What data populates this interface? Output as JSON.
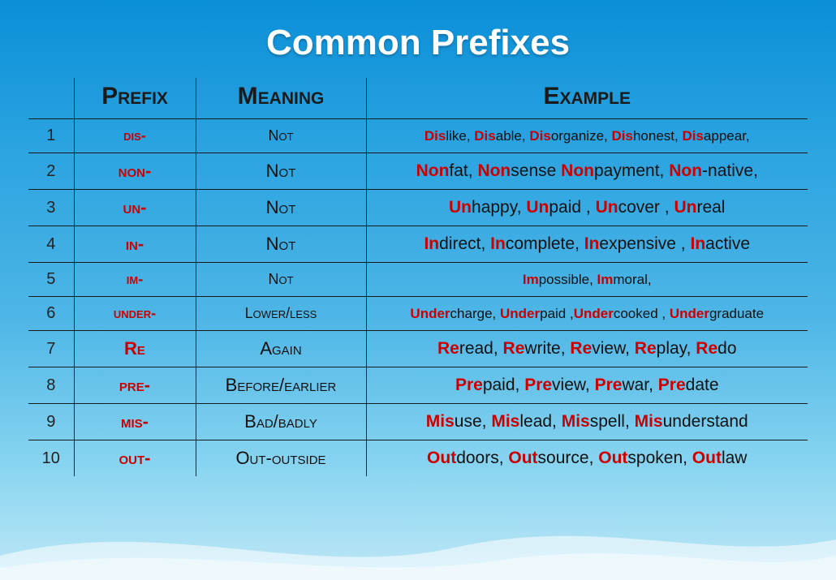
{
  "title": "Common Prefixes",
  "headers": {
    "num": "",
    "prefix": "Prefix",
    "meaning": "Meaning",
    "example": "Example"
  },
  "rows": [
    {
      "n": "1",
      "prefix": "dis-",
      "meaning": "Not",
      "sm": true,
      "examples": [
        [
          "Dis",
          "like"
        ],
        [
          "Dis",
          "able"
        ],
        [
          "Dis",
          "organize"
        ],
        [
          "Dis",
          "honest"
        ],
        [
          "Dis",
          "appear"
        ]
      ],
      "trail": ","
    },
    {
      "n": "2",
      "prefix": "non-",
      "meaning": "Not",
      "examples": [
        [
          "Non",
          "fat"
        ],
        [
          "Non",
          "sense"
        ],
        [
          "Non",
          "payment"
        ],
        [
          "Non",
          "-native"
        ]
      ],
      "sep_override": [
        ", ",
        " ",
        ", "
      ],
      "trail": ","
    },
    {
      "n": "3",
      "prefix": "un-",
      "meaning": "Not",
      "examples": [
        [
          "Un",
          "happy"
        ],
        [
          "Un",
          "paid"
        ],
        [
          "Un",
          "cover"
        ],
        [
          "Un",
          "real"
        ]
      ],
      "sep_override": [
        ", ",
        " , ",
        " , "
      ]
    },
    {
      "n": "4",
      "prefix": "in-",
      "meaning": "Not",
      "examples": [
        [
          "In",
          "direct"
        ],
        [
          "In",
          "complete"
        ],
        [
          "In",
          "expensive"
        ],
        [
          "In",
          "active"
        ]
      ],
      "sep_override": [
        ", ",
        ", ",
        " , "
      ]
    },
    {
      "n": "5",
      "prefix": "im-",
      "meaning": "Not",
      "sm": true,
      "examples": [
        [
          "Im",
          "possible"
        ],
        [
          "Im",
          "moral"
        ]
      ],
      "trail": ","
    },
    {
      "n": "6",
      "prefix": "under-",
      "meaning": "Lower/less",
      "sm": true,
      "examples": [
        [
          "Under",
          "charge"
        ],
        [
          "Under",
          "paid"
        ],
        [
          "Under",
          "cooked"
        ],
        [
          "Under",
          "graduate"
        ]
      ],
      "sep_override": [
        ", ",
        " ,",
        " , "
      ]
    },
    {
      "n": "7",
      "prefix": "Re",
      "meaning": "Again",
      "examples": [
        [
          "Re",
          "read"
        ],
        [
          "Re",
          "write"
        ],
        [
          "Re",
          "view"
        ],
        [
          "Re",
          "play"
        ],
        [
          "Re",
          "do"
        ]
      ]
    },
    {
      "n": "8",
      "prefix": "pre-",
      "meaning": "Before/earlier",
      "examples": [
        [
          "Pre",
          "paid"
        ],
        [
          "Pre",
          "view"
        ],
        [
          "Pre",
          "war"
        ],
        [
          "Pre",
          "date"
        ]
      ]
    },
    {
      "n": "9",
      "prefix": "mis-",
      "meaning": "Bad/badly",
      "examples": [
        [
          "Mis",
          "use"
        ],
        [
          "Mis",
          "lead"
        ],
        [
          "Mis",
          "spell"
        ],
        [
          "Mis",
          "understand"
        ]
      ]
    },
    {
      "n": "10",
      "prefix": "out-",
      "meaning": "Out-outside",
      "examples": [
        [
          "Out",
          "doors"
        ],
        [
          "Out",
          "source"
        ],
        [
          "Out",
          "spoken"
        ],
        [
          "Out",
          "law"
        ]
      ]
    }
  ],
  "colors": {
    "prefix": "#cc0000",
    "text": "#111111",
    "border": "#1a1a1a",
    "title": "#ffffff"
  }
}
